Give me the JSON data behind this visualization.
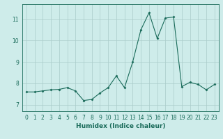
{
  "x": [
    0,
    1,
    2,
    3,
    4,
    5,
    6,
    7,
    8,
    9,
    10,
    11,
    12,
    13,
    14,
    15,
    16,
    17,
    18,
    19,
    20,
    21,
    22,
    23
  ],
  "y": [
    7.6,
    7.6,
    7.65,
    7.7,
    7.72,
    7.8,
    7.65,
    7.2,
    7.25,
    7.55,
    7.8,
    8.35,
    7.8,
    9.0,
    10.5,
    11.3,
    10.1,
    11.05,
    11.1,
    7.85,
    8.05,
    7.95,
    7.7,
    7.95
  ],
  "line_color": "#1a6b5a",
  "marker": "D",
  "markersize": 1.5,
  "linewidth": 0.8,
  "bg_color": "#ceecea",
  "grid_color": "#aacbc9",
  "xlabel": "Humidex (Indice chaleur)",
  "xlim": [
    -0.5,
    23.5
  ],
  "ylim": [
    6.7,
    11.7
  ],
  "yticks": [
    7,
    8,
    9,
    10,
    11
  ],
  "tick_fontsize": 5.5,
  "xlabel_fontsize": 6.5
}
